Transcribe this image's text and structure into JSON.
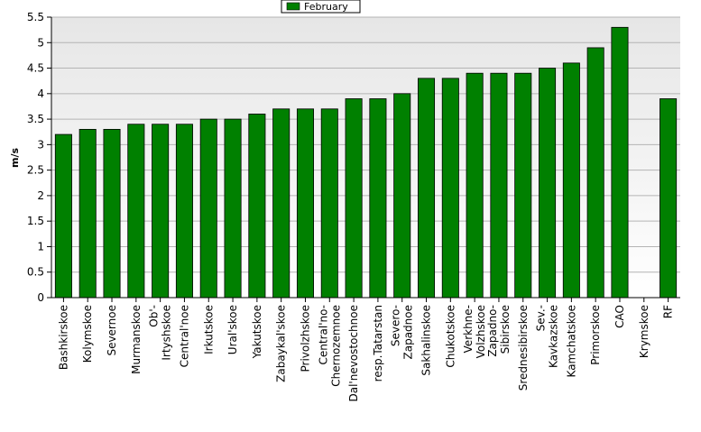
{
  "chart_data": {
    "type": "bar",
    "title": "",
    "xlabel": "",
    "ylabel": "m/s",
    "ylim": [
      0,
      5.5
    ],
    "yticks": [
      0,
      0.5,
      1,
      1.5,
      2,
      2.5,
      3,
      3.5,
      4,
      4.5,
      5,
      5.5
    ],
    "grid": true,
    "legend_position": "top-center",
    "categories": [
      "Bashkirskoe",
      "Kolymskoe",
      "Severnoe",
      "Murmanskoe",
      "Ob'-Irtyshskoe",
      "Central'noe",
      "Irkutskoe",
      "Ural'skoe",
      "Yakutskoe",
      "Zabaykal'skoe",
      "Privolzhskoe",
      "Central'no-Chernozemnoe",
      "Dal'nevostochnoe",
      "resp.Tatarstan",
      "Severo-Zapadnoe",
      "Sakhalinskoe",
      "Chukotskoe",
      "Verkhne-Volzhskoe",
      "Zapadno-Sibirskoe",
      "Srednesibirskoe",
      "Sev.-Kavkazskoe",
      "Kamchatskoe",
      "Primorskoe",
      "CAO",
      "Krymskoe",
      "RF"
    ],
    "category_display": [
      [
        "Bashkirskoe"
      ],
      [
        "Kolymskoe"
      ],
      [
        "Severnoe"
      ],
      [
        "Murmanskoe"
      ],
      [
        "Ob'-",
        "Irtyshskoe"
      ],
      [
        "Central'noe"
      ],
      [
        "Irkutskoe"
      ],
      [
        "Ural'skoe"
      ],
      [
        "Yakutskoe"
      ],
      [
        "Zabaykal'skoe"
      ],
      [
        "Privolzhskoe"
      ],
      [
        "Central'no-",
        "Chernozemnoe"
      ],
      [
        "Dal'nevostochnoe"
      ],
      [
        "resp.Tatarstan"
      ],
      [
        "Severo-",
        "Zapadnoe"
      ],
      [
        "Sakhalinskoe"
      ],
      [
        "Chukotskoe"
      ],
      [
        "Verkhne-",
        "Volzhskoe"
      ],
      [
        "Zapadno-",
        "Sibirskoe"
      ],
      [
        "Srednesibirskoe"
      ],
      [
        "Sev.-",
        "Kavkazskoe"
      ],
      [
        "Kamchatskoe"
      ],
      [
        "Primorskoe"
      ],
      [
        "CAO"
      ],
      [
        "Krymskoe"
      ],
      [
        "RF"
      ]
    ],
    "series": [
      {
        "name": "February",
        "color": "#008000",
        "values": [
          3.2,
          3.3,
          3.3,
          3.4,
          3.4,
          3.4,
          3.5,
          3.5,
          3.6,
          3.7,
          3.7,
          3.7,
          3.9,
          3.9,
          4.0,
          4.3,
          4.3,
          4.4,
          4.4,
          4.4,
          4.5,
          4.6,
          4.9,
          5.3,
          null,
          3.9
        ]
      }
    ]
  }
}
